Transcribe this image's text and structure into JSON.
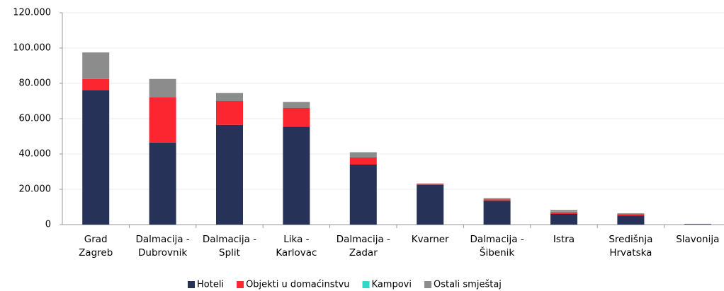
{
  "chart_data": {
    "type": "stacked-bar",
    "categories": [
      "Grad\nZagreb",
      "Dalmacija -\nDubrovnik",
      "Dalmacija -\nSplit",
      "Lika -\nKarlovac",
      "Dalmacija -\nZadar",
      "Kvarner",
      "Dalmacija -\nŠibenik",
      "Istra",
      "Središnja\nHrvatska",
      "Slavonija"
    ],
    "series": [
      {
        "name": "Hoteli",
        "color": "#263257",
        "values": [
          76000,
          46500,
          56500,
          55500,
          34000,
          22500,
          13500,
          6000,
          5000,
          300
        ]
      },
      {
        "name": "Objekti u domaćinstvu",
        "color": "#fb2630",
        "values": [
          6500,
          25500,
          13500,
          10500,
          4000,
          500,
          700,
          1000,
          800,
          50
        ]
      },
      {
        "name": "Kampovi",
        "color": "#2fd9c9",
        "values": [
          0,
          0,
          0,
          0,
          0,
          0,
          0,
          300,
          0,
          0
        ]
      },
      {
        "name": "Ostali smještaj",
        "color": "#8c8c8c",
        "values": [
          15000,
          10500,
          4500,
          3500,
          3000,
          300,
          800,
          1000,
          600,
          100
        ]
      }
    ],
    "ylim": [
      0,
      120000
    ],
    "yticks": [
      0,
      {
        "value": 20000,
        "label": "20.000"
      },
      {
        "value": 40000,
        "label": "40.000"
      },
      {
        "value": 60000,
        "label": "60.000"
      },
      {
        "value": 80000,
        "label": "80.000"
      },
      {
        "value": 100000,
        "label": "100.000"
      },
      {
        "value": 120000,
        "label": "120.000"
      }
    ],
    "grid": true,
    "legend": "bottom"
  }
}
